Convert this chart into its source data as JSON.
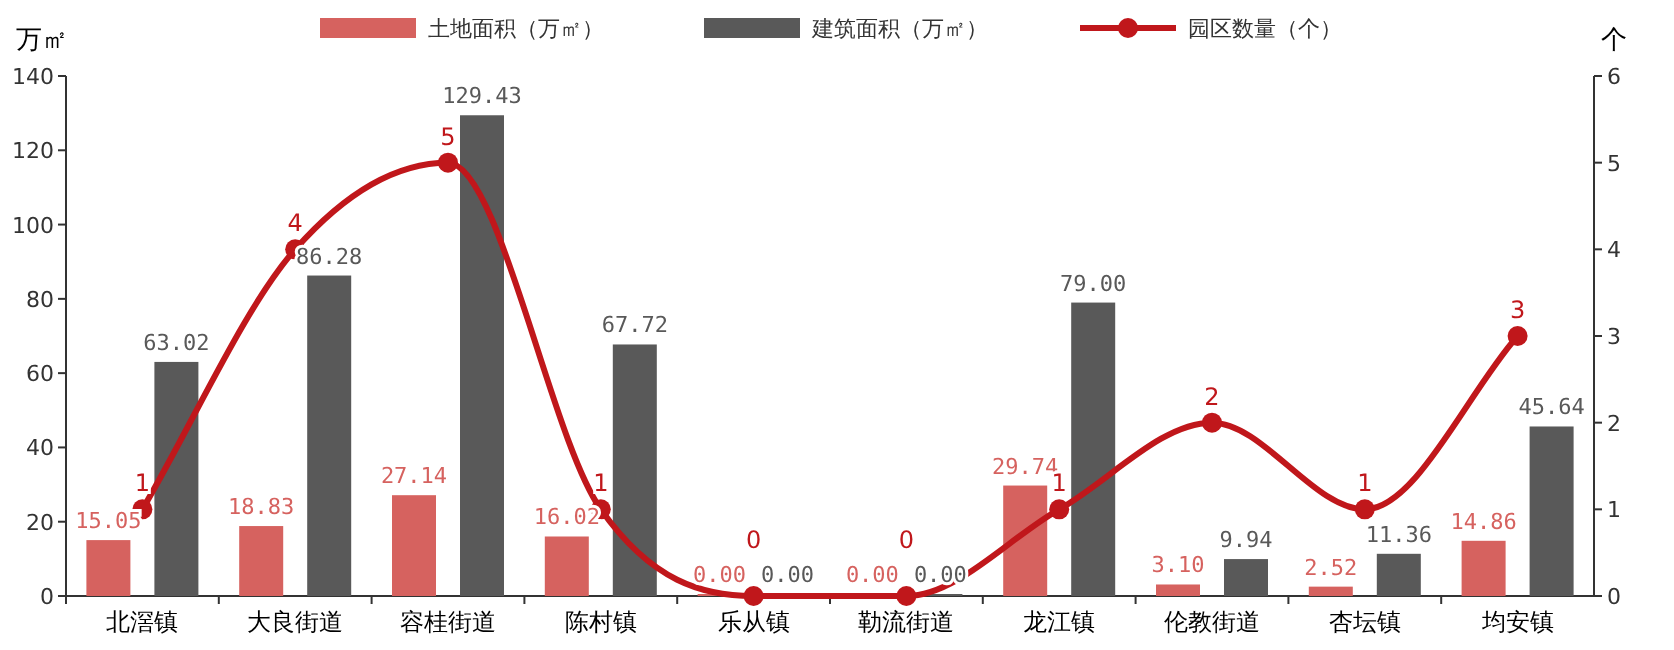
{
  "chart_data": {
    "type": "bar",
    "ylabel": "万㎡",
    "y2label": "个",
    "categories": [
      "北滘镇",
      "大良街道",
      "容桂街道",
      "陈村镇",
      "乐从镇",
      "勒流街道",
      "龙江镇",
      "伦教街道",
      "杏坛镇",
      "均安镇"
    ],
    "series": [
      {
        "name": "土地面积（万㎡）",
        "color": "#d6625f",
        "values": [
          15.05,
          18.83,
          27.14,
          16.02,
          0.0,
          0.0,
          29.74,
          3.1,
          2.52,
          14.86
        ],
        "value_labels": [
          "15.05",
          "18.83",
          "27.14",
          "16.02",
          "0.00",
          "0.00",
          "29.74",
          "3.10",
          "2.52",
          "14.86"
        ]
      },
      {
        "name": "建筑面积（万㎡）",
        "color": "#595959",
        "values": [
          63.02,
          86.28,
          129.43,
          67.72,
          0.0,
          0.0,
          79.0,
          9.94,
          11.36,
          45.64
        ],
        "value_labels": [
          "63.02",
          "86.28",
          "129.43",
          "67.72",
          "0.00",
          "0.00",
          "79.00",
          "9.94",
          "11.36",
          "45.64"
        ]
      },
      {
        "name": "园区数量（个）",
        "type": "line",
        "axis": "y2",
        "color": "#c0171b",
        "values": [
          1,
          4,
          5,
          1,
          0,
          0,
          1,
          2,
          1,
          3
        ],
        "value_labels": [
          "1",
          "4",
          "5",
          "1",
          "0",
          "0",
          "1",
          "2",
          "1",
          "3"
        ]
      }
    ],
    "ylim": [
      0,
      140
    ],
    "yticks": [
      0,
      20,
      40,
      60,
      80,
      100,
      120,
      140
    ],
    "y2lim": [
      0,
      6
    ],
    "y2ticks": [
      0,
      1,
      2,
      3,
      4,
      5,
      6
    ],
    "legend": "top",
    "marker": "circle",
    "grid": false
  }
}
